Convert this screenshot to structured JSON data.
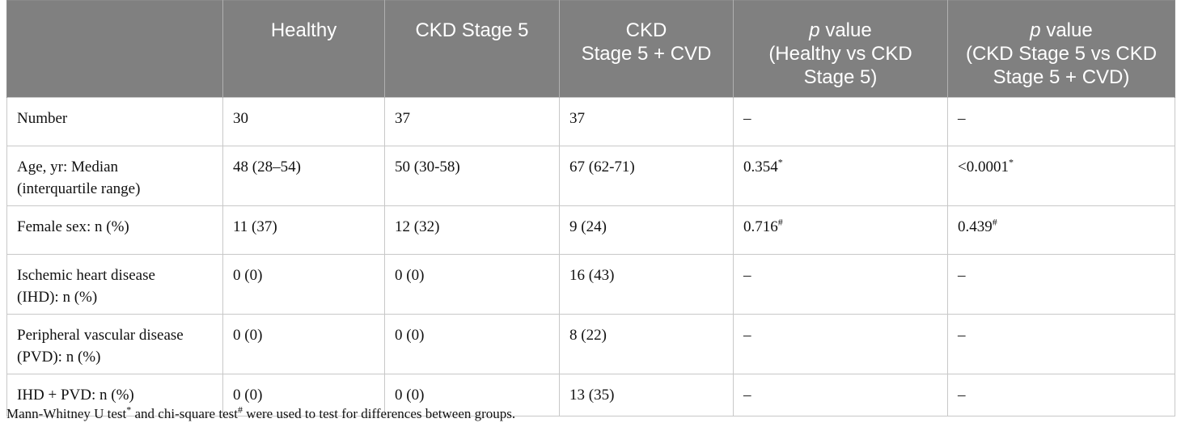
{
  "table": {
    "headers": {
      "col0": "",
      "col1": "Healthy",
      "col2": "CKD Stage 5",
      "col3_line1": "CKD",
      "col3_line2": "Stage 5 + CVD",
      "col4_p": "p",
      "col4_rest": " value",
      "col4_line2": "(Healthy vs CKD",
      "col4_line3": "Stage 5)",
      "col5_p": "p",
      "col5_rest": " value",
      "col5_line2": "(CKD Stage 5 vs CKD",
      "col5_line3": "Stage 5 + CVD)"
    },
    "rows": [
      {
        "label": "Number",
        "label2": "",
        "healthy": "30",
        "ckd5": "37",
        "ckd5_cvd": "37",
        "p1": "–",
        "p1_sup": "",
        "p2": "–",
        "p2_sup": ""
      },
      {
        "label": "Age, yr: Median",
        "label2": "(interquartile range)",
        "healthy": "48 (28–54)",
        "ckd5": "50 (30-58)",
        "ckd5_cvd": "67 (62-71)",
        "p1": "0.354",
        "p1_sup": "*",
        "p2": "<0.0001",
        "p2_sup": "*"
      },
      {
        "label": "Female sex: n (%)",
        "label2": "",
        "healthy": "11 (37)",
        "ckd5": "12 (32)",
        "ckd5_cvd": "9 (24)",
        "p1": "0.716",
        "p1_sup": "#",
        "p2": "0.439",
        "p2_sup": "#"
      },
      {
        "label": "Ischemic heart disease",
        "label2": "(IHD): n (%)",
        "healthy": "0 (0)",
        "ckd5": "0 (0)",
        "ckd5_cvd": "16 (43)",
        "p1": "–",
        "p1_sup": "",
        "p2": "–",
        "p2_sup": ""
      },
      {
        "label": "Peripheral vascular disease",
        "label2": "(PVD): n (%)",
        "healthy": "0 (0)",
        "ckd5": "0 (0)",
        "ckd5_cvd": "8 (22)",
        "p1": "–",
        "p1_sup": "",
        "p2": "–",
        "p2_sup": ""
      },
      {
        "label": "IHD + PVD: n (%)",
        "label2": "",
        "healthy": "0 (0)",
        "ckd5": "0 (0)",
        "ckd5_cvd": "13 (35)",
        "p1": "–",
        "p1_sup": "",
        "p2": "–",
        "p2_sup": ""
      }
    ]
  },
  "footnote": {
    "part1": "Mann-Whitney U test",
    "sup1": "*",
    "part2": " and chi-square test",
    "sup2": "#",
    "part3": " were used to test for differences between groups."
  },
  "colors": {
    "header_bg": "#808080",
    "header_text": "#ffffff",
    "grid": "#c8c8c8"
  }
}
